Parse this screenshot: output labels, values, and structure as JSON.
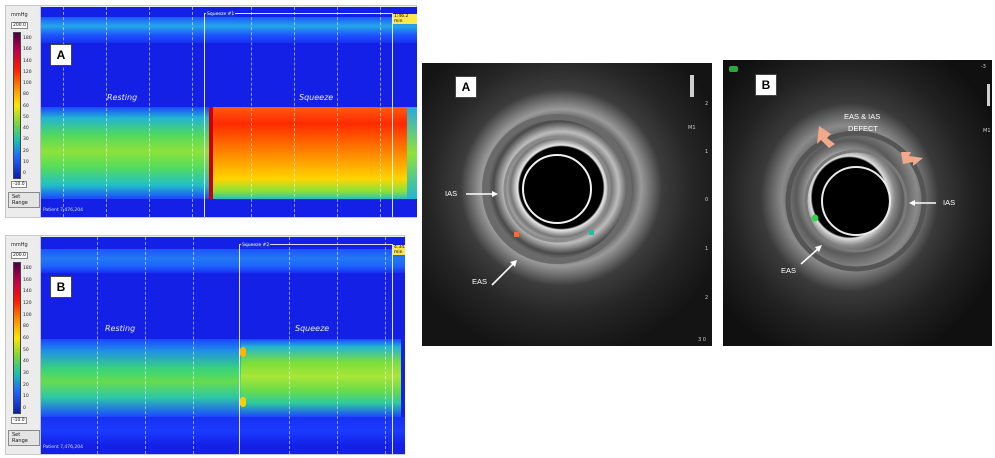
{
  "panel_a": {
    "letter": "A",
    "scale_title": "mmHg",
    "max_value": "200.0",
    "min_value": "-10.0",
    "ticks": [
      "180",
      "160",
      "140",
      "120",
      "100",
      "80",
      "60",
      "50",
      "40",
      "30",
      "20",
      "10",
      "0"
    ],
    "set_range": "Set Range",
    "squeeze_title": "Squeeze #1",
    "time_label": "1:46.2 min",
    "resting_label": "Resting",
    "squeeze_label": "Squeeze",
    "patient": "Patient 7,476,204"
  },
  "panel_b": {
    "letter": "B",
    "scale_title": "mmHg",
    "max_value": "200.0",
    "min_value": "-10.0",
    "ticks": [
      "180",
      "160",
      "140",
      "120",
      "100",
      "80",
      "60",
      "50",
      "40",
      "30",
      "20",
      "10",
      "0"
    ],
    "set_range": "Set Range",
    "squeeze_title": "Squeeze #2",
    "time_label": "4:34.9 min",
    "resting_label": "Resting",
    "squeeze_label": "Squeeze",
    "patient": "Patient 7,476,204"
  },
  "us_a": {
    "letter": "A",
    "ias": "IAS",
    "eas": "EAS",
    "ticks": [
      "2",
      "1",
      "0",
      "1",
      "2",
      "3 0"
    ],
    "m1": "M1"
  },
  "us_b": {
    "letter": "B",
    "defect_line1": "EAS & IAS",
    "defect_line2": "DEFECT",
    "ias": "IAS",
    "eas": "EAS",
    "corner": "-3",
    "m1": "M1"
  }
}
